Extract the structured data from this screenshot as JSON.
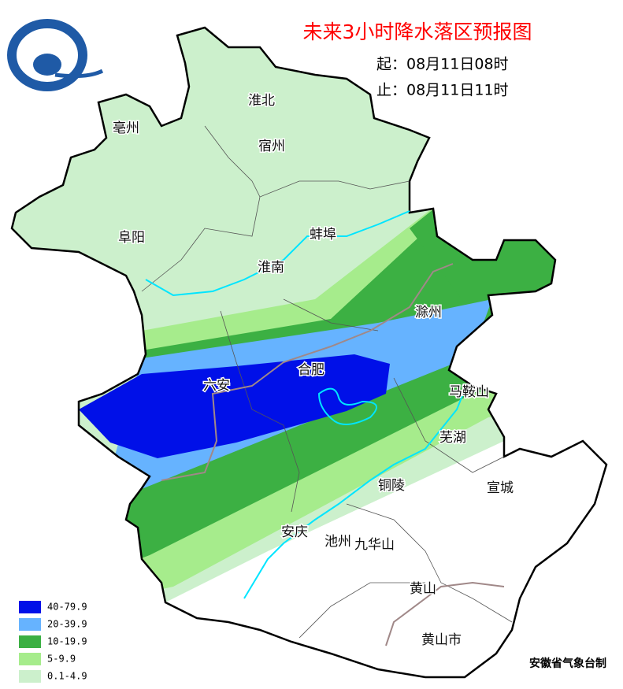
{
  "title": "未来3小时降水落区预报图",
  "valid": {
    "start": "起：08月11日08时",
    "end": "止：08月11日11时"
  },
  "cities": [
    {
      "name": "淮北"
    },
    {
      "name": "亳州"
    },
    {
      "name": "宿州"
    },
    {
      "name": "阜阳"
    },
    {
      "name": "蚌埠"
    },
    {
      "name": "淮南"
    },
    {
      "name": "滁州"
    },
    {
      "name": "六安"
    },
    {
      "name": "合肥"
    },
    {
      "name": "马鞍山"
    },
    {
      "name": "芜湖"
    },
    {
      "name": "铜陵"
    },
    {
      "name": "宣城"
    },
    {
      "name": "安庆"
    },
    {
      "name": "池州"
    },
    {
      "name": "九华山"
    },
    {
      "name": "黄山"
    },
    {
      "name": "黄山市"
    }
  ],
  "legend": [
    {
      "label": "40-79.9",
      "color": "#0010e8"
    },
    {
      "label": "20-39.9",
      "color": "#66b3ff"
    },
    {
      "label": "10-19.9",
      "color": "#3cb043"
    },
    {
      "label": "5-9.9",
      "color": "#a6ec8c"
    },
    {
      "label": "0.1-4.9",
      "color": "#ccf0cc"
    }
  ],
  "credit": "安徽省气象台制"
}
